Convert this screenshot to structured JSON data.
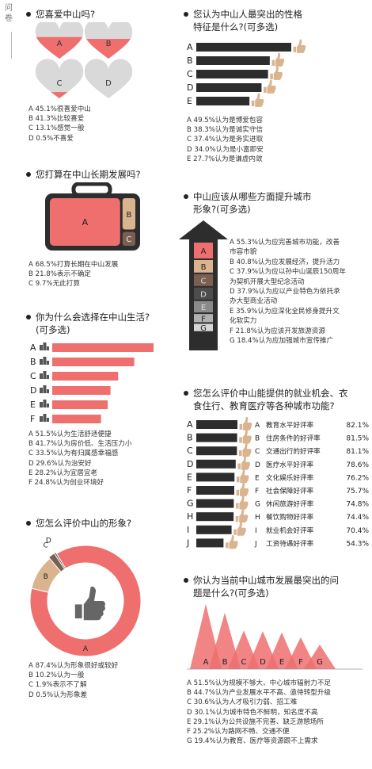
{
  "side_label": "问卷",
  "colors": {
    "pink": "#ef6f6f",
    "dark": "#2d2d2d",
    "tan": "#d9b48f",
    "brown": "#7b5f52",
    "gray": "#bdbdbd"
  },
  "q1": {
    "title": "您喜爱中山吗?",
    "items": [
      {
        "letter": "A",
        "text": "A 45.1%很喜爱中山",
        "value": 45.1
      },
      {
        "letter": "B",
        "text": "B 41.3%比较喜爱",
        "value": 41.3
      },
      {
        "letter": "C",
        "text": "C 13.1%感觉一般",
        "value": 13.1
      },
      {
        "letter": "D",
        "text": "D 0.5%不喜爱",
        "value": 0.5
      }
    ]
  },
  "q2": {
    "title": "您打算在中山长期发展吗?",
    "items": [
      {
        "letter": "A",
        "text": "A 68.5%打算长期在中山发展",
        "value": 68.5
      },
      {
        "letter": "B",
        "text": "B 21.8%表示不确定",
        "value": 21.8
      },
      {
        "letter": "C",
        "text": "C 9.7%无此打算",
        "value": 9.7
      }
    ]
  },
  "q3": {
    "title_l1": "你为什么会选择在中山生活?",
    "title_l2": "(可多选)",
    "items": [
      {
        "letter": "A",
        "text": "A 51.5%认为生活舒适便捷",
        "value": 51.5
      },
      {
        "letter": "B",
        "text": "B 41.7%认为房价低、生活压力小",
        "value": 41.7
      },
      {
        "letter": "C",
        "text": "C 33.5%认为有归属感幸福感",
        "value": 33.5
      },
      {
        "letter": "D",
        "text": "D 29.6%认为治安好",
        "value": 29.6
      },
      {
        "letter": "E",
        "text": "E 28.2%认为宜居宜老",
        "value": 28.2
      },
      {
        "letter": "F",
        "text": "F 24.8%认为创业环境好",
        "value": 24.8
      }
    ]
  },
  "q4": {
    "title": "您怎么评价中山的形象?",
    "items": [
      {
        "letter": "A",
        "text": "A 87.4%认为形象很好或较好",
        "value": 87.4
      },
      {
        "letter": "B",
        "text": "B 10.2%认为一般",
        "value": 10.2
      },
      {
        "letter": "C",
        "text": "C 1.9%表示不了解",
        "value": 1.9
      },
      {
        "letter": "D",
        "text": "D 0.5%认为形象差",
        "value": 0.5
      }
    ]
  },
  "q5": {
    "title_l1": "您认为中山人最突出的性格",
    "title_l2": "特征是什么?(可多选)",
    "items": [
      {
        "letter": "A",
        "text": "A 49.5%认为是博爱包容",
        "value": 49.5
      },
      {
        "letter": "B",
        "text": "B 38.3%认为是诚实守信",
        "value": 38.3
      },
      {
        "letter": "C",
        "text": "C 37.4%认为是务实进取",
        "value": 37.4
      },
      {
        "letter": "D",
        "text": "D 34.0%认为是小富即安",
        "value": 34.0
      },
      {
        "letter": "E",
        "text": "E 27.7%认为是谦虚内敛",
        "value": 27.7
      }
    ]
  },
  "q6": {
    "title_l1": "中山应该从哪些方面提升城市",
    "title_l2": "形象?(可多选)",
    "items": [
      {
        "letter": "A",
        "l1": "A 55.3%认为应完善城市功能，改善",
        "l2": "市容市貌",
        "value": 55.3
      },
      {
        "letter": "B",
        "l1": "B 40.8%认为应发展经济，提升活力",
        "l2": "",
        "value": 40.8
      },
      {
        "letter": "C",
        "l1": "C 37.9%认为应以孙中山诞辰150周年",
        "l2": "为契机开展大型纪念活动",
        "value": 37.9
      },
      {
        "letter": "D",
        "l1": "D 37.9%认为应以产业特色为依托承",
        "l2": "办大型商业活动",
        "value": 37.9
      },
      {
        "letter": "E",
        "l1": "E 35.9%认为应深化全民修身提升文",
        "l2": "化软实力",
        "value": 35.9
      },
      {
        "letter": "F",
        "l1": "F 21.8%认为应该开发旅游资源",
        "l2": "",
        "value": 21.8
      },
      {
        "letter": "G",
        "l1": "G 18.4%认为应加强城市宣传推广",
        "l2": "",
        "value": 18.4
      }
    ]
  },
  "q7": {
    "title_l1": "您怎么评价中山能提供的就业机会、衣",
    "title_l2": "食住行、教育医疗等各种城市功能?",
    "items": [
      {
        "letter": "A",
        "label": "教育水平好评率",
        "pct": "82.1%",
        "value": 82.1
      },
      {
        "letter": "B",
        "label": "住房条件的好评率",
        "pct": "81.5%",
        "value": 81.5
      },
      {
        "letter": "C",
        "label": "交通出行的好评率",
        "pct": "81.1%",
        "value": 81.1
      },
      {
        "letter": "D",
        "label": "医疗水平好评率",
        "pct": "78.6%",
        "value": 78.6
      },
      {
        "letter": "E",
        "label": "文化娱乐好评率",
        "pct": "76.2%",
        "value": 76.2
      },
      {
        "letter": "F",
        "label": "社会保障好评率",
        "pct": "75.7%",
        "value": 75.7
      },
      {
        "letter": "G",
        "label": "休闲旅游好评率",
        "pct": "74.8%",
        "value": 74.8
      },
      {
        "letter": "H",
        "label": "餐饮购物好评率",
        "pct": "74.4%",
        "value": 74.4
      },
      {
        "letter": "I",
        "label": "就业机会好评率",
        "pct": "70.4%",
        "value": 70.4
      },
      {
        "letter": "J",
        "label": "工资待遇好评率",
        "pct": "54.3%",
        "value": 54.3
      }
    ]
  },
  "q8": {
    "title_l1": "你认为当前中山城市发展最突出的问",
    "title_l2": "题是什么?(可多选)",
    "items": [
      {
        "letter": "A",
        "text": "A 51.5%认为规模不够大、中心城市辐射力不足",
        "value": 51.5
      },
      {
        "letter": "B",
        "text": "B 44.7%认为产业发展水平不高、亟待转型升级",
        "value": 44.7
      },
      {
        "letter": "C",
        "text": "C 30.6%认为人才吸引力弱、招工难",
        "value": 30.6
      },
      {
        "letter": "D",
        "text": "D 30.1%认为城市特色不鲜明，知名度不高",
        "value": 30.1
      },
      {
        "letter": "E",
        "text": "E 29.1%认为公共设施不完善、缺乏游憩场所",
        "value": 29.1
      },
      {
        "letter": "F",
        "text": "F 25.2%认为路网不畅、交通不便",
        "value": 25.2
      },
      {
        "letter": "G",
        "text": "G 19.4%认为教育、医疗等资源跟不上需求",
        "value": 19.4
      }
    ]
  },
  "chart_data": [
    {
      "type": "pie",
      "title": "您喜爱中山吗?",
      "categories": [
        "A",
        "B",
        "C",
        "D"
      ],
      "values": [
        45.1,
        41.3,
        13.1,
        0.5
      ]
    },
    {
      "type": "pie",
      "title": "您打算在中山长期发展吗?",
      "categories": [
        "A",
        "B",
        "C"
      ],
      "values": [
        68.5,
        21.8,
        9.7
      ]
    },
    {
      "type": "bar",
      "title": "你为什么会选择在中山生活?(可多选)",
      "categories": [
        "A",
        "B",
        "C",
        "D",
        "E",
        "F"
      ],
      "values": [
        51.5,
        41.7,
        33.5,
        29.6,
        28.2,
        24.8
      ]
    },
    {
      "type": "pie",
      "title": "您怎么评价中山的形象?",
      "categories": [
        "A",
        "B",
        "C",
        "D"
      ],
      "values": [
        87.4,
        10.2,
        1.9,
        0.5
      ]
    },
    {
      "type": "bar",
      "title": "您认为中山人最突出的性格特征是什么?(可多选)",
      "categories": [
        "A",
        "B",
        "C",
        "D",
        "E"
      ],
      "values": [
        49.5,
        38.3,
        37.4,
        34.0,
        27.7
      ]
    },
    {
      "type": "bar",
      "title": "中山应该从哪些方面提升城市形象?(可多选)",
      "categories": [
        "A",
        "B",
        "C",
        "D",
        "E",
        "F",
        "G"
      ],
      "values": [
        55.3,
        40.8,
        37.9,
        37.9,
        35.9,
        21.8,
        18.4
      ]
    },
    {
      "type": "bar",
      "title": "您怎么评价中山能提供的就业机会、衣食住行、教育医疗等各种城市功能?",
      "categories": [
        "A",
        "B",
        "C",
        "D",
        "E",
        "F",
        "G",
        "H",
        "I",
        "J"
      ],
      "values": [
        82.1,
        81.5,
        81.1,
        78.6,
        76.2,
        75.7,
        74.8,
        74.4,
        70.4,
        54.3
      ]
    },
    {
      "type": "bar",
      "title": "你认为当前中山城市发展最突出的问题是什么?(可多选)",
      "categories": [
        "A",
        "B",
        "C",
        "D",
        "E",
        "F",
        "G"
      ],
      "values": [
        51.5,
        44.7,
        30.6,
        30.1,
        29.1,
        25.2,
        19.4
      ]
    }
  ]
}
